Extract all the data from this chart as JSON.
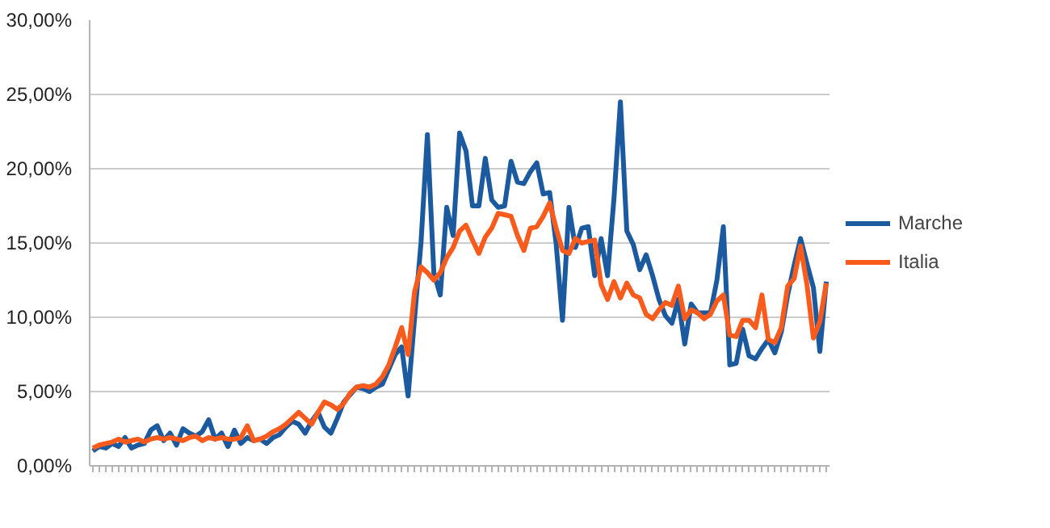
{
  "chart_data": {
    "type": "line",
    "categories": [
      null,
      null,
      null,
      null,
      null,
      null,
      null,
      null,
      null,
      null,
      null,
      null,
      null,
      null,
      null,
      null,
      null,
      null,
      null,
      null,
      null,
      null,
      null,
      null,
      null,
      null,
      null,
      null,
      null,
      null,
      null,
      null,
      null,
      null,
      null,
      null,
      null,
      null,
      null,
      null,
      null,
      null,
      null,
      null,
      null,
      null,
      null,
      null,
      null,
      null,
      null,
      null,
      null,
      null,
      null,
      null,
      null,
      null,
      null,
      null,
      null,
      null,
      null,
      null,
      null,
      null,
      null,
      null,
      null,
      null,
      null,
      null,
      null,
      null,
      null,
      null,
      null,
      null,
      null,
      null,
      null,
      null,
      null,
      null,
      null,
      null,
      null,
      null,
      null,
      null,
      null,
      null,
      null,
      null,
      null,
      null,
      null,
      null,
      null,
      null,
      null,
      null,
      null,
      null,
      null,
      null,
      null,
      null,
      null,
      null,
      null,
      null,
      null,
      null,
      null
    ],
    "series": [
      {
        "name": "Marche",
        "color": "#1c5aa0",
        "values": [
          1.0,
          1.3,
          1.2,
          1.5,
          1.3,
          1.9,
          1.2,
          1.4,
          1.5,
          2.4,
          2.7,
          1.7,
          2.2,
          1.4,
          2.5,
          2.2,
          2.0,
          2.3,
          3.1,
          1.8,
          2.2,
          1.3,
          2.4,
          1.5,
          1.9,
          1.7,
          1.8,
          1.5,
          1.9,
          2.1,
          2.6,
          3.0,
          2.8,
          2.2,
          3.0,
          3.6,
          2.6,
          2.2,
          3.2,
          4.3,
          4.8,
          5.3,
          5.2,
          5.0,
          5.3,
          5.5,
          6.5,
          7.5,
          8.0,
          4.7,
          9.9,
          15.0,
          22.3,
          13.0,
          11.5,
          17.4,
          15.5,
          22.4,
          21.2,
          17.5,
          17.5,
          20.7,
          17.9,
          17.4,
          17.5,
          20.5,
          19.1,
          19.0,
          19.8,
          20.4,
          18.3,
          18.4,
          15.0,
          9.8,
          17.4,
          14.7,
          16.0,
          16.1,
          12.8,
          15.3,
          12.8,
          18.0,
          24.5,
          15.8,
          14.9,
          13.2,
          14.2,
          12.8,
          11.2,
          10.1,
          9.6,
          11.2,
          8.2,
          10.9,
          10.3,
          10.3,
          10.3,
          12.5,
          16.1,
          6.8,
          6.9,
          9.2,
          7.4,
          7.2,
          7.9,
          8.5,
          7.6,
          9.0,
          11.5,
          13.5,
          15.3,
          13.6,
          12.0,
          7.7,
          12.4
        ]
      },
      {
        "name": "Italia",
        "color": "#f95b1c",
        "values": [
          1.2,
          1.4,
          1.5,
          1.6,
          1.8,
          1.6,
          1.7,
          1.8,
          1.6,
          1.8,
          1.9,
          1.8,
          1.9,
          1.8,
          1.7,
          1.9,
          2.0,
          1.7,
          1.9,
          1.8,
          1.9,
          1.8,
          1.8,
          1.9,
          2.7,
          1.7,
          1.8,
          2.0,
          2.3,
          2.5,
          2.8,
          3.2,
          3.6,
          3.2,
          2.8,
          3.6,
          4.3,
          4.1,
          3.8,
          4.2,
          4.9,
          5.3,
          5.4,
          5.3,
          5.5,
          6.0,
          6.8,
          8.0,
          9.3,
          7.5,
          11.7,
          13.4,
          13.0,
          12.5,
          13.0,
          14.0,
          14.7,
          15.8,
          16.2,
          15.2,
          14.3,
          15.4,
          16.0,
          17.0,
          16.9,
          16.8,
          15.5,
          14.5,
          16.0,
          16.1,
          16.8,
          17.7,
          16.0,
          14.5,
          14.3,
          15.3,
          15.0,
          15.1,
          15.2,
          12.2,
          11.2,
          12.4,
          11.3,
          12.3,
          11.5,
          11.3,
          10.2,
          9.9,
          10.5,
          11.0,
          10.8,
          12.1,
          9.9,
          10.5,
          10.3,
          9.9,
          10.2,
          11.1,
          11.5,
          8.8,
          8.7,
          9.8,
          9.8,
          9.3,
          11.5,
          8.5,
          8.3,
          9.3,
          12.1,
          12.6,
          14.8,
          12.2,
          8.6,
          9.7,
          12.3
        ]
      }
    ],
    "ylim": [
      0,
      30
    ],
    "yticks": [
      {
        "value": 0,
        "label": "0,00%"
      },
      {
        "value": 5,
        "label": "5,00%"
      },
      {
        "value": 10,
        "label": "10,00%"
      },
      {
        "value": 15,
        "label": "15,00%"
      },
      {
        "value": 20,
        "label": "20,00%"
      },
      {
        "value": 25,
        "label": "25,00%"
      },
      {
        "value": 30,
        "label": "30,00%"
      }
    ],
    "grid": "y",
    "legend": "right",
    "marker": "none",
    "line_style": "solid"
  }
}
